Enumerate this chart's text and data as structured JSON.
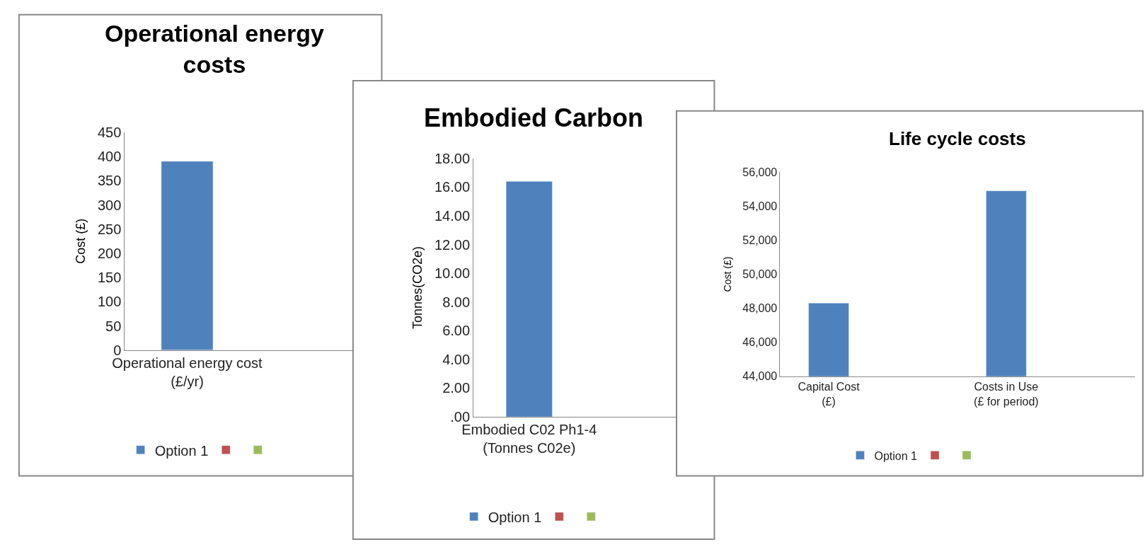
{
  "chart_data": [
    {
      "type": "bar",
      "title": "Operational energy\ncosts",
      "ylabel": "Cost (£)",
      "categories": [
        "Operational energy cost\n(£/yr)"
      ],
      "series": [
        {
          "name": "Option 1",
          "color": "#4f81bd",
          "values": [
            390
          ]
        },
        {
          "color": "#c0504d",
          "values": [
            null
          ]
        },
        {
          "color": "#9bbb59",
          "values": [
            null
          ]
        }
      ],
      "ylim": [
        0,
        450
      ],
      "yticks": [
        0,
        50,
        100,
        150,
        200,
        250,
        300,
        350,
        400,
        450
      ],
      "legend": "bottom"
    },
    {
      "type": "bar",
      "title": "Embodied Carbon",
      "ylabel": "Tonnes(CO2e)",
      "categories": [
        "Embodied C02 Ph1-4\n(Tonnes C02e)"
      ],
      "series": [
        {
          "name": "Option 1",
          "color": "#4f81bd",
          "values": [
            16.4
          ]
        },
        {
          "color": "#c0504d",
          "values": [
            null
          ]
        },
        {
          "color": "#9bbb59",
          "values": [
            null
          ]
        }
      ],
      "ylim": [
        0,
        18
      ],
      "yticks": [
        {
          "value": 0,
          "label": ".00"
        },
        {
          "value": 2,
          "label": "2.00"
        },
        {
          "value": 4,
          "label": "4.00"
        },
        {
          "value": 6,
          "label": "6.00"
        },
        {
          "value": 8,
          "label": "8.00"
        },
        {
          "value": 10,
          "label": "10.00"
        },
        {
          "value": 12,
          "label": "12.00"
        },
        {
          "value": 14,
          "label": "14.00"
        },
        {
          "value": 16,
          "label": "16.00"
        },
        {
          "value": 18,
          "label": "18.00"
        }
      ],
      "legend": "bottom"
    },
    {
      "type": "bar",
      "title": "Life cycle costs",
      "ylabel": "Cost (£)",
      "categories": [
        "Capital Cost\n(£)",
        "Costs in Use\n(£ for period)"
      ],
      "series": [
        {
          "name": "Option 1",
          "color": "#4f81bd",
          "values": [
            48300,
            54900
          ]
        },
        {
          "color": "#c0504d",
          "values": [
            null,
            null
          ]
        },
        {
          "color": "#9bbb59",
          "values": [
            null,
            null
          ]
        }
      ],
      "ylim": [
        44000,
        56000
      ],
      "yticks": [
        {
          "value": 44000,
          "label": "44,000"
        },
        {
          "value": 46000,
          "label": "46,000"
        },
        {
          "value": 48000,
          "label": "48,000"
        },
        {
          "value": 50000,
          "label": "50,000"
        },
        {
          "value": 52000,
          "label": "52,000"
        },
        {
          "value": 54000,
          "label": "54,000"
        },
        {
          "value": 56000,
          "label": "56,000"
        }
      ],
      "legend": "bottom"
    }
  ]
}
